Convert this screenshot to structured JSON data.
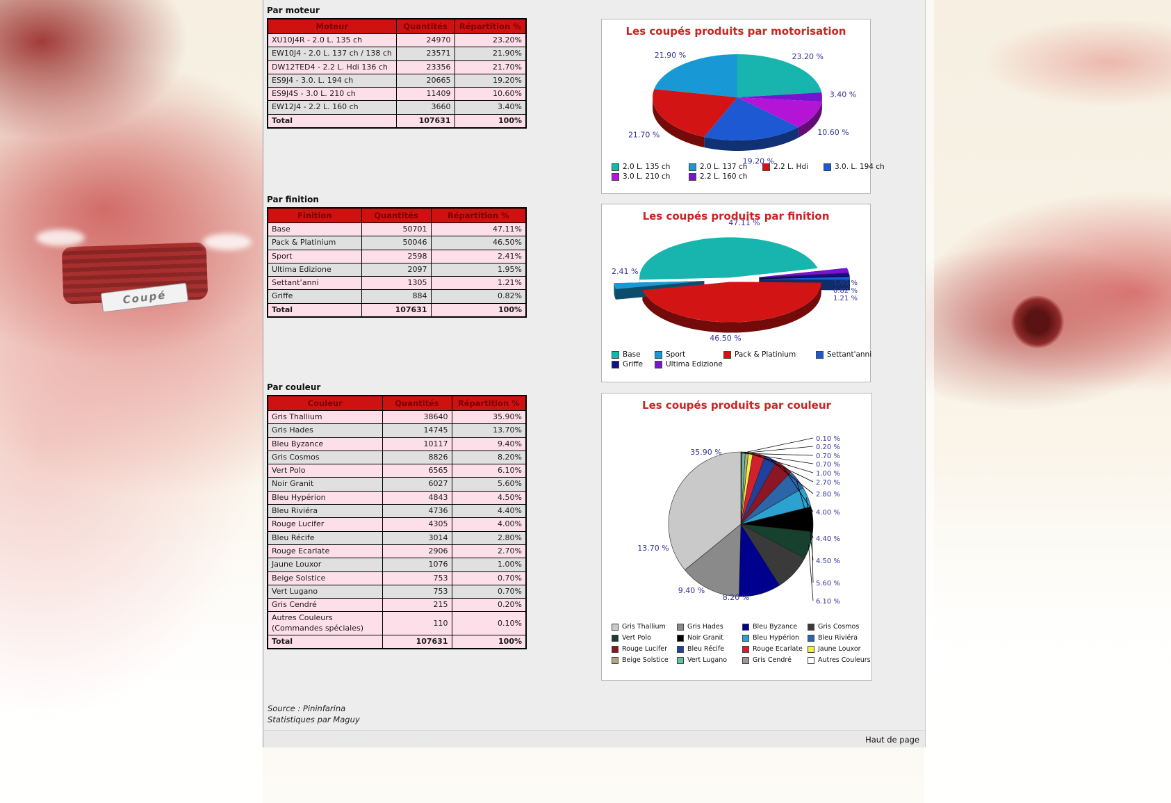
{
  "page": {
    "haut_de_page": "Haut de page",
    "source_line1": "Source : Pininfarina",
    "source_line2": "Statistiques par Maguy"
  },
  "background": {
    "plate_text": "Coupé"
  },
  "sections": [
    {
      "heading": "Par moteur",
      "columns": [
        "Moteur",
        "Quantités",
        "Répartition %"
      ],
      "rows": [
        [
          "XU10J4R - 2.0 L. 135 ch",
          "24970",
          "23.20%"
        ],
        [
          "EW10J4 - 2.0 L. 137 ch / 138 ch",
          "23571",
          "21.90%"
        ],
        [
          "DW12TED4 - 2.2 L. Hdi 136 ch",
          "23356",
          "21.70%"
        ],
        [
          "ES9J4 - 3.0. L. 194 ch",
          "20665",
          "19.20%"
        ],
        [
          "ES9J4S - 3.0 L. 210 ch",
          "11409",
          "10.60%"
        ],
        [
          "EW12J4 - 2.2 L. 160 ch",
          "3660",
          "3.40%"
        ]
      ],
      "total": {
        "label": "Total",
        "qty": "107631",
        "pct": "100%"
      }
    },
    {
      "heading": "Par finition",
      "columns": [
        "Finition",
        "Quantités",
        "Répartition %"
      ],
      "rows": [
        [
          "Base",
          "50701",
          "47.11%"
        ],
        [
          "Pack & Platinium",
          "50046",
          "46.50%"
        ],
        [
          "Sport",
          "2598",
          "2.41%"
        ],
        [
          "Ultima Edizione",
          "2097",
          "1.95%"
        ],
        [
          "Settant’anni",
          "1305",
          "1.21%"
        ],
        [
          "Griffe",
          "884",
          "0.82%"
        ]
      ],
      "total": {
        "label": "Total",
        "qty": "107631",
        "pct": "100%"
      }
    },
    {
      "heading": "Par couleur",
      "columns": [
        "Couleur",
        "Quantités",
        "Répartition %"
      ],
      "rows": [
        [
          "Gris Thallium",
          "38640",
          "35.90%"
        ],
        [
          "Gris Hades",
          "14745",
          "13.70%"
        ],
        [
          "Bleu Byzance",
          "10117",
          "9.40%"
        ],
        [
          "Gris Cosmos",
          "8826",
          "8.20%"
        ],
        [
          "Vert Polo",
          "6565",
          "6.10%"
        ],
        [
          "Noir Granit",
          "6027",
          "5.60%"
        ],
        [
          "Bleu Hypérion",
          "4843",
          "4.50%"
        ],
        [
          "Bleu Riviéra",
          "4736",
          "4.40%"
        ],
        [
          "Rouge Lucifer",
          "4305",
          "4.00%"
        ],
        [
          "Bleu Récife",
          "3014",
          "2.80%"
        ],
        [
          "Rouge Ecarlate",
          "2906",
          "2.70%"
        ],
        [
          "Jaune Louxor",
          "1076",
          "1.00%"
        ],
        [
          "Beige Solstice",
          "753",
          "0.70%"
        ],
        [
          "Vert Lugano",
          "753",
          "0.70%"
        ],
        [
          "Gris Cendré",
          "215",
          "0.20%"
        ],
        [
          "Autres Couleurs (Commandes spéciales)",
          "110",
          "0.10%"
        ]
      ],
      "total": {
        "label": "Total",
        "qty": "107631",
        "pct": "100%"
      }
    }
  ],
  "chart_data": [
    {
      "type": "pie",
      "style": "3d",
      "title": "Les coupés produits par motorisation",
      "legend_position": "bottom",
      "slices": [
        {
          "label": "2.0 L. 135 ch",
          "value": 23.2,
          "display": "23.20 %",
          "color": "#17b5ad"
        },
        {
          "label": "2.2 L. 160 ch",
          "value": 3.4,
          "display": "3.40 %",
          "color": "#7714cf"
        },
        {
          "label": "3.0 L. 210 ch",
          "value": 10.6,
          "display": "10.60 %",
          "color": "#b414d6"
        },
        {
          "label": "3.0. L. 194 ch",
          "value": 19.2,
          "display": "19.20 %",
          "color": "#1d59d2"
        },
        {
          "label": "2.2 L. Hdi",
          "value": 21.7,
          "display": "21.70 %",
          "color": "#d31414"
        },
        {
          "label": "2.0 L. 137 ch",
          "value": 21.9,
          "display": "21.90 %",
          "color": "#1899d6"
        }
      ],
      "legend": [
        {
          "label": "2.0 L. 135 ch",
          "color": "#17b5ad"
        },
        {
          "label": "2.0 L. 137 ch",
          "color": "#1899d6"
        },
        {
          "label": "2.2 L. Hdi",
          "color": "#d31414"
        },
        {
          "label": "3.0. L. 194 ch",
          "color": "#1d59d2"
        },
        {
          "label": "3.0 L. 210 ch",
          "color": "#b414d6"
        },
        {
          "label": "2.2 L. 160 ch",
          "color": "#7714cf"
        }
      ]
    },
    {
      "type": "pie",
      "style": "3d-exploded",
      "title": "Les coupés produits par finition",
      "legend_position": "bottom",
      "slices": [
        {
          "label": "Base",
          "value": 47.11,
          "display": "47.11 %",
          "color": "#17b5ad"
        },
        {
          "label": "Ultima Edizione",
          "value": 1.95,
          "display": "1.95 %",
          "color": "#7714cf"
        },
        {
          "label": "Griffe",
          "value": 0.82,
          "display": "0.82 %",
          "color": "#10108c"
        },
        {
          "label": "Settant'anni",
          "value": 1.21,
          "display": "1.21 %",
          "color": "#1d59d2"
        },
        {
          "label": "Pack & Platinium",
          "value": 46.5,
          "display": "46.50 %",
          "color": "#d31414"
        },
        {
          "label": "Sport",
          "value": 2.41,
          "display": "2.41 %",
          "color": "#1899d6"
        }
      ],
      "legend": [
        {
          "label": "Base",
          "color": "#17b5ad"
        },
        {
          "label": "Sport",
          "color": "#1899d6"
        },
        {
          "label": "Pack & Platinium",
          "color": "#d31414"
        },
        {
          "label": "Settant'anni",
          "color": "#1d59d2"
        },
        {
          "label": "Griffe",
          "color": "#10108c"
        },
        {
          "label": "Ultima Edizione",
          "color": "#7714cf"
        }
      ]
    },
    {
      "type": "pie",
      "style": "flat",
      "title": "Les coupés produits par couleur",
      "legend_position": "bottom",
      "slices": [
        {
          "label": "Autres Couleurs",
          "value": 0.1,
          "display": "0.10 %",
          "color": "#ffffff"
        },
        {
          "label": "Gris Cendré",
          "value": 0.2,
          "display": "0.20 %",
          "color": "#a39595"
        },
        {
          "label": "Vert Lugano",
          "value": 0.7,
          "display": "0.70 %",
          "color": "#5fc39e"
        },
        {
          "label": "Beige Solstice",
          "value": 0.7,
          "display": "0.70 %",
          "color": "#b3a67f"
        },
        {
          "label": "Jaune Louxor",
          "value": 1.0,
          "display": "1.00 %",
          "color": "#f1ee4b"
        },
        {
          "label": "Rouge Ecarlate",
          "value": 2.7,
          "display": "2.70 %",
          "color": "#d2202e"
        },
        {
          "label": "Bleu Récife",
          "value": 2.8,
          "display": "2.80 %",
          "color": "#20409e"
        },
        {
          "label": "Rouge Lucifer",
          "value": 4.0,
          "display": "4.00 %",
          "color": "#8c1626"
        },
        {
          "label": "Bleu Riviéra",
          "value": 4.4,
          "display": "4.40 %",
          "color": "#2d66a8"
        },
        {
          "label": "Bleu Hypérion",
          "value": 4.5,
          "display": "4.50 %",
          "color": "#2ba2cf"
        },
        {
          "label": "Noir Granit",
          "value": 5.6,
          "display": "5.60 %",
          "color": "#000000"
        },
        {
          "label": "Vert Polo",
          "value": 6.1,
          "display": "6.10 %",
          "color": "#17402e"
        },
        {
          "label": "Gris Cosmos",
          "value": 8.2,
          "display": "8.20 %",
          "color": "#3a3a3a"
        },
        {
          "label": "Bleu Byzance",
          "value": 9.4,
          "display": "9.40 %",
          "color": "#00008f"
        },
        {
          "label": "Gris Hades",
          "value": 13.7,
          "display": "13.70 %",
          "color": "#8a8a8a"
        },
        {
          "label": "Gris Thallium",
          "value": 35.9,
          "display": "35.90 %",
          "color": "#c9c9c9"
        }
      ],
      "legend": [
        {
          "label": "Gris Thallium",
          "color": "#c9c9c9"
        },
        {
          "label": "Gris Hades",
          "color": "#8a8a8a"
        },
        {
          "label": "Bleu Byzance",
          "color": "#00008f"
        },
        {
          "label": "Gris Cosmos",
          "color": "#3a3a3a"
        },
        {
          "label": "Vert Polo",
          "color": "#17402e"
        },
        {
          "label": "Noir Granit",
          "color": "#000000"
        },
        {
          "label": "Bleu Hypérion",
          "color": "#2ba2cf"
        },
        {
          "label": "Bleu Riviéra",
          "color": "#2d66a8"
        },
        {
          "label": "Rouge Lucifer",
          "color": "#8c1626"
        },
        {
          "label": "Bleu Récife",
          "color": "#20409e"
        },
        {
          "label": "Rouge Ecarlate",
          "color": "#d2202e"
        },
        {
          "label": "Jaune Louxor",
          "color": "#f1ee4b"
        },
        {
          "label": "Beige Solstice",
          "color": "#b3a67f"
        },
        {
          "label": "Vert Lugano",
          "color": "#5fc39e"
        },
        {
          "label": "Gris Cendré",
          "color": "#a39595"
        },
        {
          "label": "Autres Couleurs",
          "color": "#ffffff"
        }
      ]
    }
  ]
}
